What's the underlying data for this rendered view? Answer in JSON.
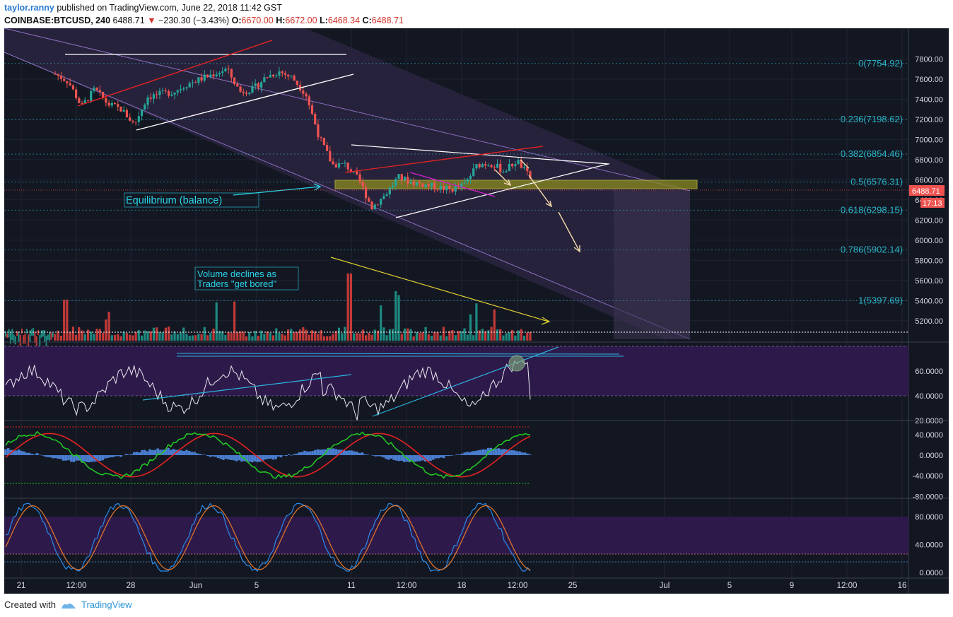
{
  "header": {
    "author": "taylor.ranny",
    "published_text": " published on TradingView.com, June 22, 2018 11:42 GST",
    "symbol": "COINBASE:BTCUSD",
    "interval": ", 240",
    "last": "6488.71",
    "change": "−230.30 (−3.43%)",
    "o_label": "O:",
    "o": "6670.00",
    "h_label": "H:",
    "h": "6672.00",
    "l_label": "L:",
    "l": "6468.34",
    "c_label": "C:",
    "c": "6488.71"
  },
  "footer": {
    "created_with": "Created with",
    "brand": "TradingView"
  },
  "colors": {
    "background": "#131722",
    "up": "#26a69a",
    "down": "#ef5350",
    "fib": "#2ab3c7",
    "rsi_band": "#2e1a4a",
    "channel": "#c6b3e6"
  },
  "chart_data": {
    "type": "candlestick",
    "price_axis": {
      "ticks": [
        "7800.00",
        "7600.00",
        "7400.00",
        "7200.00",
        "7000.00",
        "6800.00",
        "6600.00",
        "6400.00",
        "6200.00",
        "6000.00",
        "5800.00",
        "5600.00",
        "5400.00",
        "5200.00"
      ],
      "range": [
        5100,
        7950
      ]
    },
    "last_price_label": "6488.71",
    "countdown_label": "17:13",
    "time_axis": [
      "21",
      "12:00",
      "28",
      "Jun",
      "5",
      "11",
      "12:00",
      "18",
      "12:00",
      "25",
      "Jul",
      "5",
      "9",
      "12:00",
      "16"
    ],
    "fib_levels": [
      {
        "label": "0(7754.92)",
        "value": 7754.92
      },
      {
        "label": "0.236(7198.62)",
        "value": 7198.62
      },
      {
        "label": "0.382(6854.46)",
        "value": 6854.46
      },
      {
        "label": "0.5(6576.31)",
        "value": 6576.31
      },
      {
        "label": "0.618(6298.15)",
        "value": 6298.15
      },
      {
        "label": "0.786(5902.14)",
        "value": 5902.14
      },
      {
        "label": "1(5397.69)",
        "value": 5397.69
      }
    ],
    "annotations": [
      {
        "text": "Equilibrium (balance)"
      },
      {
        "text": "Volume declines as"
      },
      {
        "text": "Traders \"get bored\""
      }
    ],
    "price_path": [
      [
        7900,
        7400
      ],
      [
        7550,
        7600
      ],
      [
        7300,
        7350
      ],
      [
        7450,
        7550
      ],
      [
        7300,
        7400
      ],
      [
        7250,
        7350
      ],
      [
        7100,
        7200
      ],
      [
        7350,
        7500
      ],
      [
        7500,
        7400
      ],
      [
        7400,
        7550
      ],
      [
        7500,
        7600
      ],
      [
        7550,
        7650
      ],
      [
        7700,
        7600
      ],
      [
        7700,
        7700
      ],
      [
        7500,
        7450
      ],
      [
        7400,
        7600
      ],
      [
        7600,
        7650
      ],
      [
        7700,
        7650
      ],
      [
        7620,
        7600
      ],
      [
        7550,
        7350
      ],
      [
        7200,
        6850
      ],
      [
        6700,
        6800
      ],
      [
        6800,
        6700
      ],
      [
        6700,
        6500
      ],
      [
        6400,
        6250
      ],
      [
        6300,
        6600
      ],
      [
        6550,
        6700
      ],
      [
        6600,
        6550
      ],
      [
        6500,
        6600
      ],
      [
        6550,
        6500
      ],
      [
        6450,
        6550
      ],
      [
        6500,
        6600
      ],
      [
        6700,
        6800
      ],
      [
        6780,
        6750
      ],
      [
        6720,
        6650
      ],
      [
        6780,
        6800
      ],
      [
        6750,
        6480
      ]
    ],
    "rsi": {
      "ticks": [
        "60.0000",
        "40.0000",
        "20.0000"
      ],
      "range": [
        10,
        70
      ]
    },
    "macd": {
      "ticks": [
        "40.0000",
        "0.0000",
        "-40.0000",
        "-80.0000"
      ],
      "range": [
        -85,
        55
      ]
    },
    "stoch": {
      "ticks": [
        "80.0000",
        "40.0000",
        "0.0000"
      ],
      "range": [
        -5,
        105
      ]
    }
  }
}
